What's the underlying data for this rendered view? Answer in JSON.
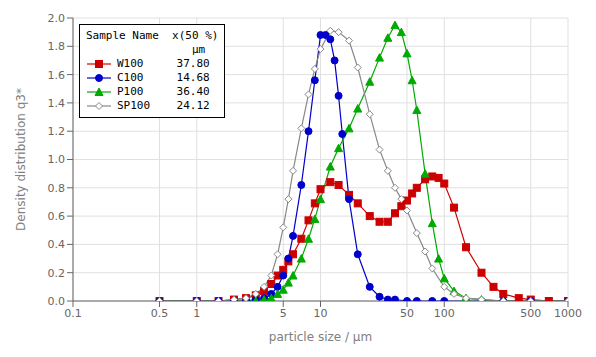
{
  "chart_data": {
    "type": "line",
    "xlabel": "particle size / µm",
    "ylabel": "Density distribution q3*",
    "log": "x",
    "grid": true,
    "legend": "upper left",
    "legend_title": "Sample Name  x(50 %)\n                µm",
    "xlim": [
      0.1,
      1000
    ],
    "ylim": [
      0.0,
      2.0
    ],
    "xticks": [
      0.1,
      0.5,
      1,
      5,
      10,
      50,
      100,
      500,
      1000
    ],
    "yticks": [
      {
        "value": 0,
        "label": "0.0"
      },
      0.2,
      0.4,
      0.6,
      0.8,
      {
        "value": 1,
        "label": "1.0"
      },
      1.2,
      1.4,
      1.6,
      1.8,
      {
        "value": 2,
        "label": "2.0"
      }
    ],
    "series": [
      {
        "name": "W100     37.80",
        "color": "#cc0000",
        "marker": "square",
        "x": [
          0.5,
          1.0,
          1.5,
          2.0,
          2.5,
          3.0,
          3.5,
          4.0,
          4.5,
          5.0,
          5.5,
          6.0,
          7.0,
          8.0,
          9.0,
          10.0,
          12.0,
          14.0,
          17.0,
          20.0,
          25.0,
          30.0,
          35.0,
          40.0,
          45.0,
          50.0,
          55.0,
          60.0,
          70.0,
          80.0,
          90.0,
          100.0,
          120.0,
          150.0,
          200.0,
          250.0,
          300.0,
          400.0,
          500.0,
          700.0,
          1000.0
        ],
        "values": [
          0.0,
          0.0,
          0.0,
          0.01,
          0.02,
          0.04,
          0.07,
          0.12,
          0.18,
          0.22,
          0.28,
          0.33,
          0.44,
          0.57,
          0.69,
          0.79,
          0.84,
          0.82,
          0.75,
          0.69,
          0.6,
          0.56,
          0.56,
          0.62,
          0.67,
          0.71,
          0.76,
          0.8,
          0.86,
          0.88,
          0.87,
          0.83,
          0.66,
          0.38,
          0.2,
          0.1,
          0.05,
          0.02,
          0.01,
          0.0,
          0.0
        ]
      },
      {
        "name": "C100     14.68",
        "color": "#0000cc",
        "marker": "circle",
        "x": [
          0.5,
          1.0,
          1.5,
          2.0,
          2.5,
          3.0,
          3.5,
          4.0,
          4.5,
          5.0,
          5.5,
          6.0,
          7.0,
          8.0,
          9.0,
          10.0,
          11.0,
          12.0,
          13.0,
          14.0,
          15.0,
          17.0,
          20.0,
          25.0,
          30.0,
          35.0,
          40.0,
          50.0,
          60.0,
          80.0,
          100.0,
          150.0,
          200.0,
          300.0,
          500.0,
          1000.0
        ],
        "values": [
          0.0,
          0.0,
          0.0,
          0.0,
          0.0,
          0.01,
          0.02,
          0.05,
          0.1,
          0.18,
          0.3,
          0.46,
          0.82,
          1.2,
          1.56,
          1.88,
          1.88,
          1.85,
          1.7,
          1.45,
          1.18,
          0.72,
          0.33,
          0.1,
          0.03,
          0.01,
          0.01,
          0.0,
          0.0,
          0.0,
          0.0,
          0.0,
          0.0,
          0.0,
          0.0,
          0.0
        ]
      },
      {
        "name": "P100     36.40",
        "color": "#00aa00",
        "marker": "triangle",
        "x": [
          0.5,
          1.0,
          1.5,
          2.0,
          2.5,
          3.0,
          3.5,
          4.0,
          4.5,
          5.0,
          5.5,
          6.0,
          7.0,
          8.0,
          9.0,
          10.0,
          12.0,
          14.0,
          17.0,
          20.0,
          25.0,
          30.0,
          35.0,
          40.0,
          45.0,
          50.0,
          55.0,
          60.0,
          70.0,
          80.0,
          90.0,
          100.0,
          120.0,
          150.0,
          200.0,
          300.0,
          500.0,
          1000.0
        ],
        "values": [
          0.0,
          0.0,
          0.0,
          0.0,
          0.0,
          0.0,
          0.01,
          0.02,
          0.05,
          0.08,
          0.13,
          0.18,
          0.3,
          0.44,
          0.58,
          0.72,
          0.95,
          1.08,
          1.22,
          1.36,
          1.55,
          1.72,
          1.86,
          1.95,
          1.9,
          1.75,
          1.56,
          1.35,
          0.9,
          0.55,
          0.3,
          0.16,
          0.07,
          0.02,
          0.01,
          0.0,
          0.0,
          0.0
        ]
      },
      {
        "name": "SP100    24.12",
        "color": "#888888",
        "marker": "diamond",
        "x": [
          0.5,
          1.0,
          1.5,
          2.0,
          2.5,
          3.0,
          3.5,
          4.0,
          4.5,
          5.0,
          5.5,
          6.0,
          7.0,
          8.0,
          9.0,
          10.0,
          12.0,
          14.0,
          17.0,
          20.0,
          25.0,
          30.0,
          35.0,
          40.0,
          45.0,
          50.0,
          60.0,
          70.0,
          80.0,
          100.0,
          120.0,
          150.0,
          200.0,
          300.0,
          500.0,
          1000.0
        ],
        "values": [
          0.0,
          0.0,
          0.0,
          0.01,
          0.02,
          0.05,
          0.1,
          0.18,
          0.33,
          0.52,
          0.72,
          0.92,
          1.22,
          1.46,
          1.64,
          1.78,
          1.91,
          1.9,
          1.84,
          1.65,
          1.32,
          1.07,
          0.92,
          0.8,
          0.72,
          0.64,
          0.48,
          0.35,
          0.23,
          0.1,
          0.05,
          0.02,
          0.01,
          0.0,
          0.0,
          0.0
        ]
      }
    ]
  }
}
